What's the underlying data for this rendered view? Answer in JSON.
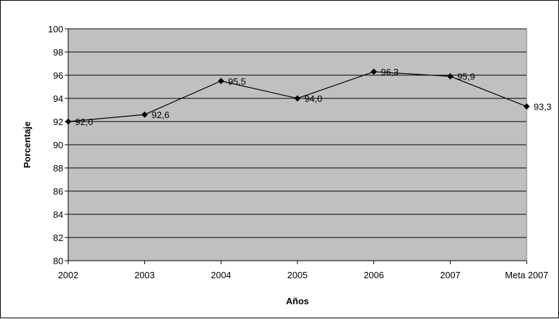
{
  "chart_data": {
    "type": "line",
    "categories": [
      "2002",
      "2003",
      "2004",
      "2005",
      "2006",
      "2007",
      "Meta 2007"
    ],
    "series": [
      {
        "values": [
          92.0,
          92.6,
          95.5,
          94.0,
          96.3,
          95.9,
          93.3
        ],
        "labels": [
          "92,0",
          "92,6",
          "95,5",
          "94,0",
          "96,3",
          "95,9",
          "93,3"
        ]
      }
    ],
    "xlabel": "Años",
    "ylabel": "Porcentaje",
    "ylim": [
      80,
      100
    ],
    "yticks": [
      80,
      82,
      84,
      86,
      88,
      90,
      92,
      94,
      96,
      98,
      100
    ],
    "ytick_labels": [
      "80",
      "82",
      "84",
      "86",
      "88",
      "90",
      "92",
      "94",
      "96",
      "98",
      "100"
    ],
    "grid": true,
    "legend": false,
    "colors": {
      "plot_background": "#c0c0c0",
      "line": "#000000",
      "gridline": "#000000"
    }
  }
}
